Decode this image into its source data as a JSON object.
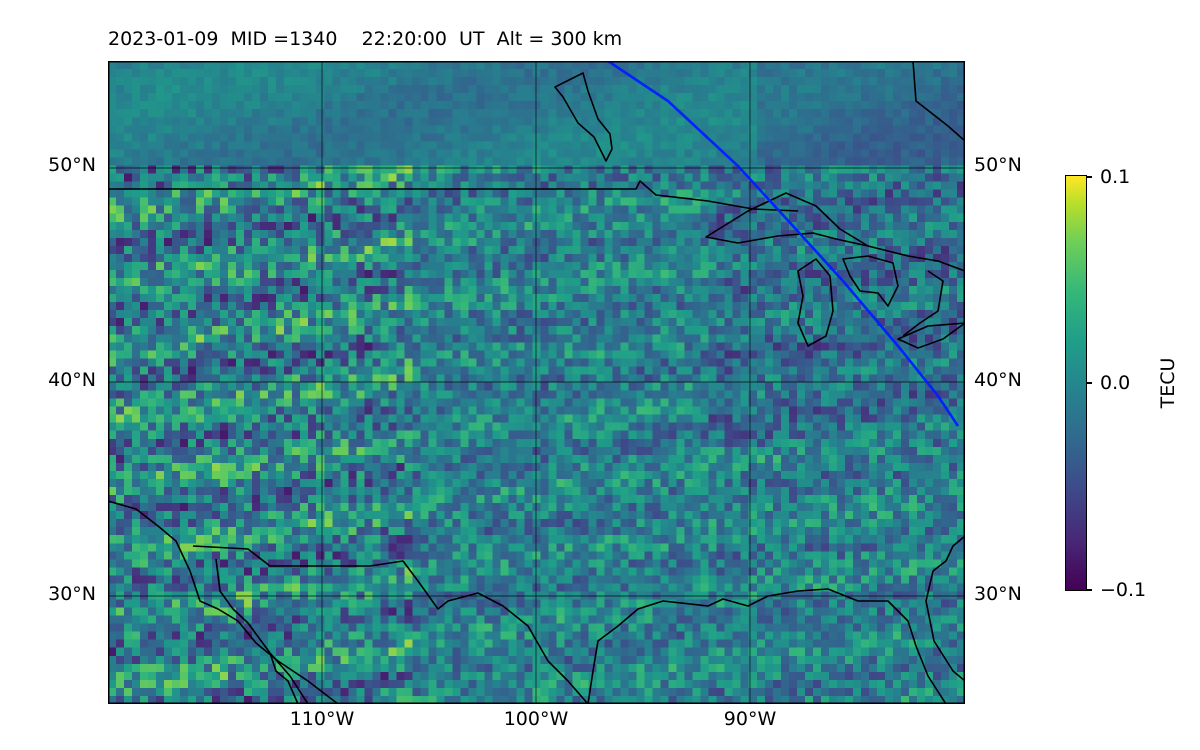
{
  "title": "2023-01-09  MID =1340    22:20:00  UT  Alt = 300 km",
  "map": {
    "lat_labels": [
      "50°N",
      "40°N",
      "30°N"
    ],
    "lon_labels": [
      "110°W",
      "100°W",
      "90°W"
    ],
    "lat_range": [
      25,
      55
    ],
    "lon_range": [
      -120,
      -80
    ],
    "grid": true
  },
  "colorbar": {
    "label": "TECU",
    "ticks": [
      "0.1",
      "0.0",
      "−0.1"
    ],
    "range": [
      -0.1,
      0.1
    ],
    "colormap": "viridis"
  },
  "colors": {
    "track": "#0022ff",
    "coastline": "#000000",
    "gridline": "#000000"
  }
}
